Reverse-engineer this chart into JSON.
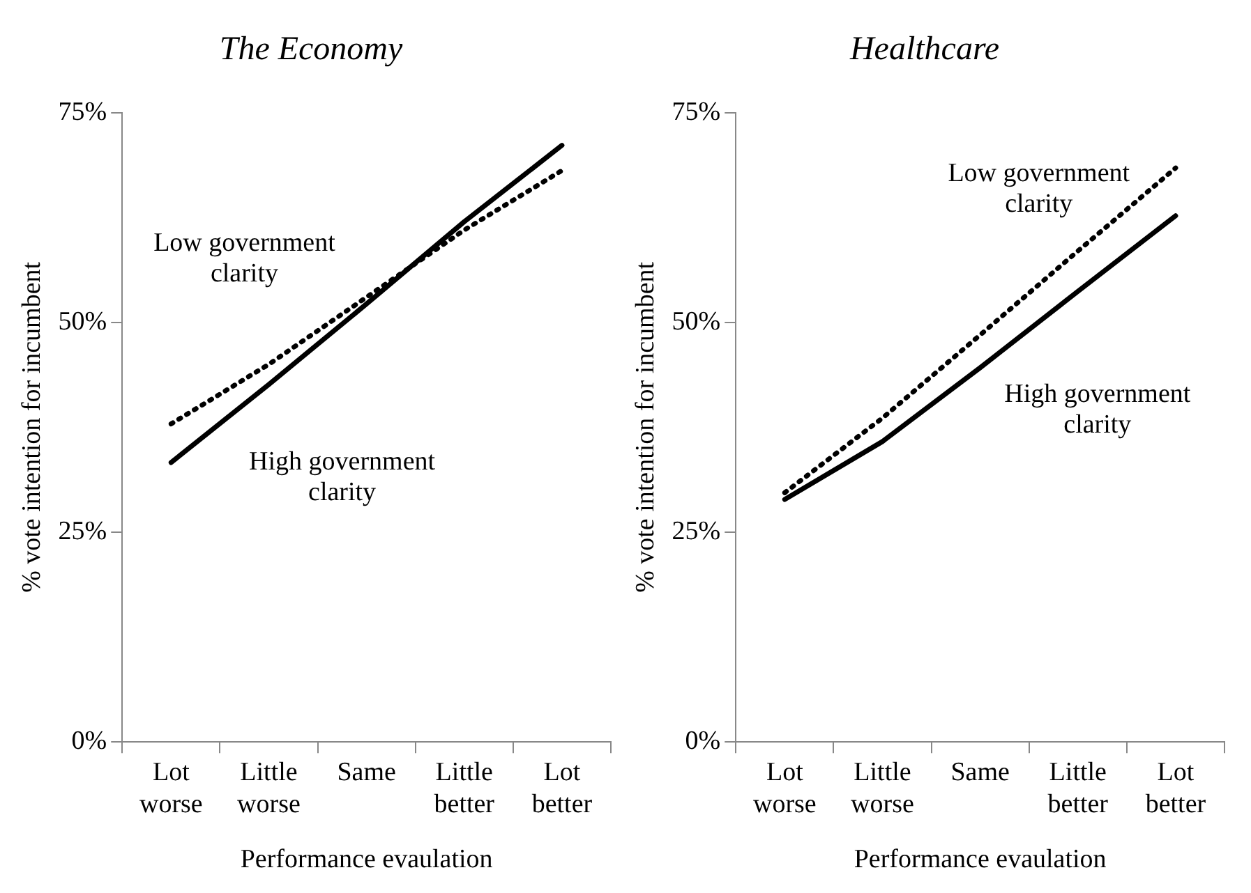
{
  "chart_data": [
    {
      "type": "line",
      "title": "The Economy",
      "xlabel": "Performance evaulation",
      "ylabel": "% vote intention for incumbent",
      "categories": [
        "Lot worse",
        "Little worse",
        "Same",
        "Little better",
        "Lot better"
      ],
      "ylim": [
        0,
        75
      ],
      "yticks": [
        {
          "value": 0,
          "label": "0%"
        },
        {
          "value": 25,
          "label": "25%"
        },
        {
          "value": 50,
          "label": "50%"
        },
        {
          "value": 75,
          "label": "75%"
        }
      ],
      "grid": false,
      "legend": false,
      "marker": "none",
      "series": [
        {
          "name": "Low government clarity",
          "color": "#000000",
          "line_style": "dotted",
          "values": [
            37.9,
            45.0,
            53.0,
            61.0,
            68.1
          ]
        },
        {
          "name": "High government clarity",
          "color": "#000000",
          "line_style": "solid",
          "values": [
            33.3,
            42.6,
            52.2,
            62.0,
            71.1
          ]
        }
      ]
    },
    {
      "type": "line",
      "title": "Healthcare",
      "xlabel": "Performance evaulation",
      "ylabel": "% vote intention for incumbent",
      "categories": [
        "Lot worse",
        "Little worse",
        "Same",
        "Little better",
        "Lot better"
      ],
      "ylim": [
        0,
        75
      ],
      "yticks": [
        {
          "value": 0,
          "label": "0%"
        },
        {
          "value": 25,
          "label": "25%"
        },
        {
          "value": 50,
          "label": "50%"
        },
        {
          "value": 75,
          "label": "75%"
        }
      ],
      "grid": false,
      "legend": false,
      "marker": "none",
      "series": [
        {
          "name": "Low government clarity",
          "color": "#000000",
          "line_style": "dotted",
          "values": [
            29.7,
            38.6,
            48.5,
            58.5,
            68.4
          ]
        },
        {
          "name": "High government clarity",
          "color": "#000000",
          "line_style": "solid",
          "values": [
            28.9,
            35.8,
            44.6,
            53.7,
            62.7
          ]
        }
      ]
    }
  ]
}
